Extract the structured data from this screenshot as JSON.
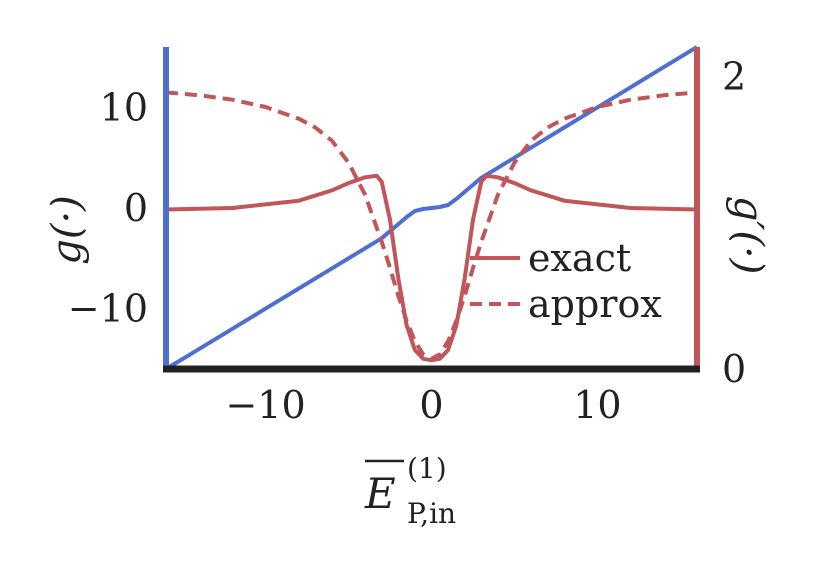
{
  "chart_data": {
    "type": "line",
    "xlabel": {
      "main": "E",
      "superscript": "(1)",
      "subscript": "P,in"
    },
    "ylabel_left": "g(·)",
    "ylabel_right": "g′(·)",
    "xlim": [
      -16,
      16
    ],
    "ylim_left": [
      -16,
      16
    ],
    "ylim_right": [
      0,
      2.2
    ],
    "x_ticks": [
      {
        "value": -10,
        "label": "−10"
      },
      {
        "value": 0,
        "label": "0"
      },
      {
        "value": 10,
        "label": "10"
      }
    ],
    "y_ticks_left": [
      {
        "value": -10,
        "label": "−10"
      },
      {
        "value": 0,
        "label": "0"
      },
      {
        "value": 10,
        "label": "10"
      }
    ],
    "y_ticks_right": [
      {
        "value": 0,
        "label": "0"
      },
      {
        "value": 2,
        "label": "2"
      }
    ],
    "grid": false,
    "legend_position": "center-right",
    "colors": {
      "blue": "#4f6fd0",
      "red": "#c0555a",
      "black": "#222222"
    },
    "series": [
      {
        "name": "",
        "axis": "left",
        "color": "#4f6fd0",
        "style": "solid",
        "x": [
          -16,
          -14,
          -12,
          -10,
          -8,
          -6,
          -4,
          -3,
          -2,
          -1.5,
          -1,
          -0.5,
          0,
          0.5,
          1,
          1.5,
          2,
          3,
          4,
          6,
          8,
          10,
          12,
          14,
          16
        ],
        "y": [
          -16,
          -14,
          -12,
          -10,
          -8,
          -6,
          -4,
          -3,
          -1.6,
          -0.9,
          -0.3,
          -0.1,
          0,
          0.1,
          0.3,
          0.9,
          1.6,
          3,
          4,
          6,
          8,
          10,
          12,
          14,
          16
        ]
      },
      {
        "name": "exact",
        "axis": "right",
        "color": "#c0555a",
        "style": "solid",
        "x": [
          -16,
          -12,
          -8,
          -6,
          -5,
          -4,
          -3.3,
          -3,
          -2.5,
          -2,
          -1.5,
          -1,
          -0.5,
          0,
          0.5,
          1,
          1.5,
          2,
          2.5,
          3,
          3.3,
          4,
          5,
          6,
          8,
          12,
          16
        ],
        "y": [
          1.09,
          1.1,
          1.15,
          1.22,
          1.27,
          1.31,
          1.32,
          1.28,
          1.02,
          0.62,
          0.3,
          0.13,
          0.07,
          0.06,
          0.07,
          0.13,
          0.3,
          0.62,
          1.02,
          1.28,
          1.32,
          1.31,
          1.27,
          1.22,
          1.15,
          1.1,
          1.09
        ]
      },
      {
        "name": "approx",
        "axis": "right",
        "color": "#c0555a",
        "style": "dashed",
        "x": [
          -16,
          -14,
          -12,
          -10,
          -8,
          -7,
          -6,
          -5,
          -4,
          -3,
          -2.5,
          -2,
          -1.5,
          -1,
          -0.5,
          0,
          0.5,
          1,
          1.5,
          2,
          2.5,
          3,
          4,
          5,
          6,
          7,
          8,
          10,
          12,
          14,
          16
        ],
        "y": [
          1.89,
          1.87,
          1.84,
          1.79,
          1.71,
          1.65,
          1.56,
          1.41,
          1.19,
          0.87,
          0.69,
          0.5,
          0.33,
          0.19,
          0.1,
          0.07,
          0.1,
          0.19,
          0.33,
          0.5,
          0.69,
          0.87,
          1.19,
          1.41,
          1.56,
          1.65,
          1.71,
          1.79,
          1.84,
          1.87,
          1.89
        ]
      }
    ]
  }
}
